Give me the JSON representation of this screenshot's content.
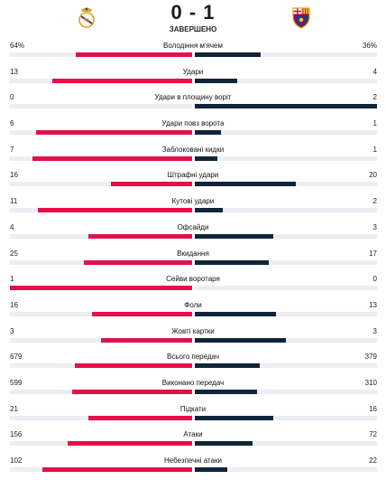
{
  "match": {
    "score": "0 - 1",
    "status": "ЗАВЕРШЕНО",
    "home_crest": "real-madrid-crest",
    "away_crest": "fc-barcelona-crest"
  },
  "colors": {
    "home_bar": "#e3104a",
    "away_bar": "#10253a",
    "track": "#eceef1"
  },
  "stats": [
    {
      "label": "Володіння м'ячем",
      "home": "64%",
      "away": "36%",
      "home_share": 0.64,
      "away_share": 0.36
    },
    {
      "label": "Удари",
      "home": "13",
      "away": "4",
      "home_share": 0.765,
      "away_share": 0.235
    },
    {
      "label": "Удари в площину воріт",
      "home": "0",
      "away": "2",
      "home_share": 0.0,
      "away_share": 1.0
    },
    {
      "label": "Удари повз ворота",
      "home": "6",
      "away": "1",
      "home_share": 0.857,
      "away_share": 0.143
    },
    {
      "label": "Заблоковані кидки",
      "home": "7",
      "away": "1",
      "home_share": 0.875,
      "away_share": 0.125
    },
    {
      "label": "Штрафні удари",
      "home": "16",
      "away": "20",
      "home_share": 0.444,
      "away_share": 0.556
    },
    {
      "label": "Кутові удари",
      "home": "11",
      "away": "2",
      "home_share": 0.846,
      "away_share": 0.154
    },
    {
      "label": "Офсайди",
      "home": "4",
      "away": "3",
      "home_share": 0.571,
      "away_share": 0.429
    },
    {
      "label": "Вкидання",
      "home": "25",
      "away": "17",
      "home_share": 0.595,
      "away_share": 0.405
    },
    {
      "label": "Сейви воротаря",
      "home": "1",
      "away": "0",
      "home_share": 1.0,
      "away_share": 0.0
    },
    {
      "label": "Фоли",
      "home": "16",
      "away": "13",
      "home_share": 0.552,
      "away_share": 0.448
    },
    {
      "label": "Жовті картки",
      "home": "3",
      "away": "3",
      "home_share": 0.5,
      "away_share": 0.5
    },
    {
      "label": "Всього передач",
      "home": "679",
      "away": "379",
      "home_share": 0.642,
      "away_share": 0.358
    },
    {
      "label": "Виконано передач",
      "home": "599",
      "away": "310",
      "home_share": 0.659,
      "away_share": 0.341
    },
    {
      "label": "Підкати",
      "home": "21",
      "away": "16",
      "home_share": 0.568,
      "away_share": 0.432
    },
    {
      "label": "Атаки",
      "home": "156",
      "away": "72",
      "home_share": 0.684,
      "away_share": 0.316
    },
    {
      "label": "Небезпечні атаки",
      "home": "102",
      "away": "22",
      "home_share": 0.823,
      "away_share": 0.177
    }
  ]
}
